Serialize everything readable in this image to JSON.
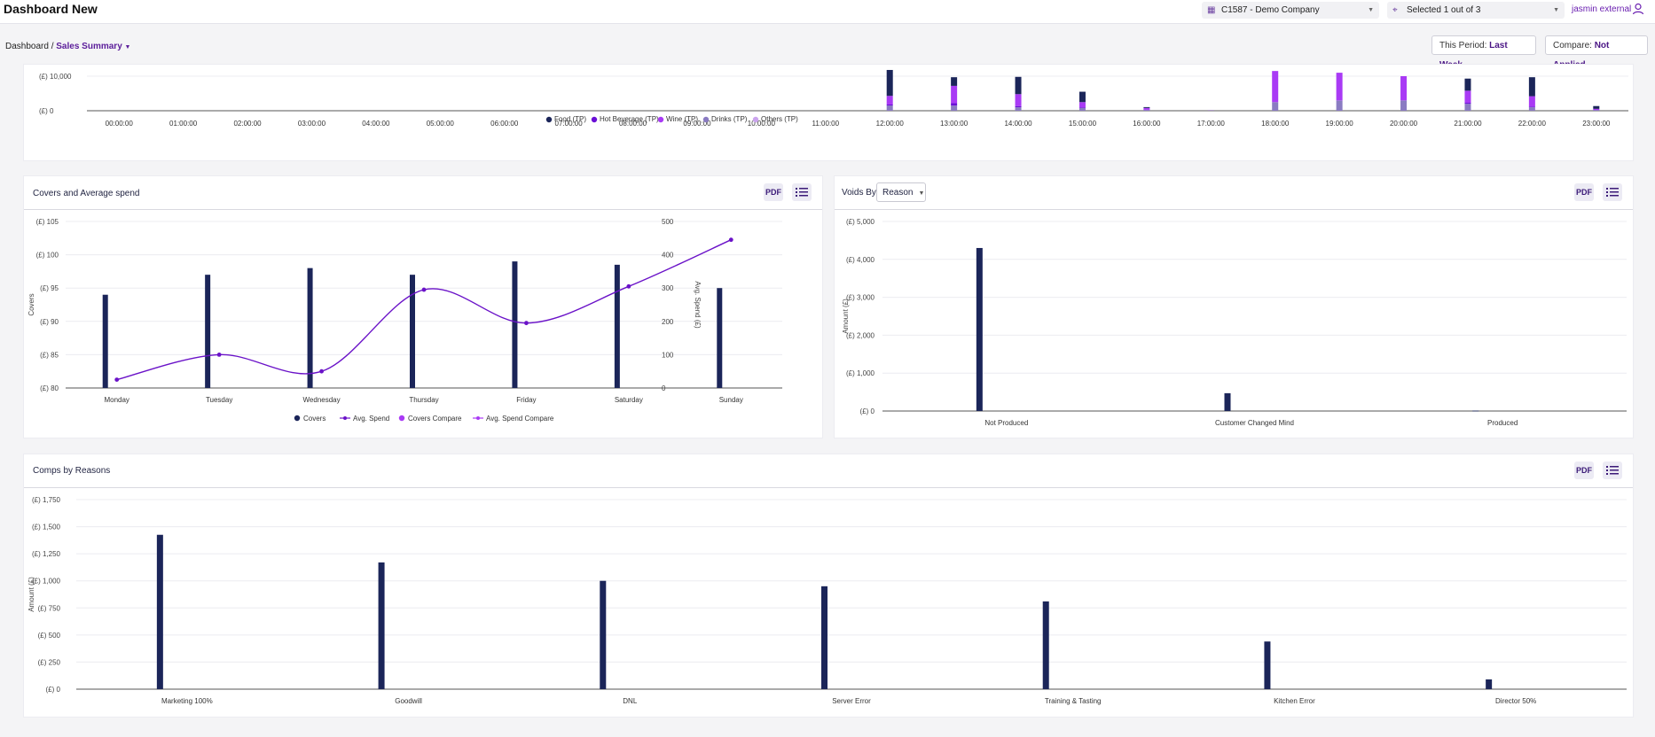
{
  "app": {
    "title": "Dashboard New"
  },
  "header": {
    "company": "C1587 - Demo Company",
    "sites": "Selected 1 out of 3",
    "user": "jasmin external"
  },
  "breadcrumb": {
    "root": "Dashboard",
    "sep": "/",
    "current": "Sales Summary"
  },
  "period": {
    "label": "This Period:",
    "value": "Last Week"
  },
  "compare": {
    "label": "Compare:",
    "value": "Not Applied"
  },
  "colors": {
    "navy": "#1b2559",
    "hot_beverage": "#6a0fd6",
    "wine": "#a93af5",
    "drinks": "#8a7bc2",
    "others": "#cba4ee",
    "spend_line": "#6a12c8",
    "accent": "#5b1d9a"
  },
  "buttons": {
    "pdf": "PDF"
  },
  "cards": {
    "covers": {
      "title": "Covers and Average spend"
    },
    "voids": {
      "title": "Voids By",
      "select": "Reason"
    },
    "comps": {
      "title": "Comps by Reasons"
    }
  },
  "chart_data": [
    {
      "id": "hourly",
      "type": "bar",
      "stacked": true,
      "categories": [
        "00:00:00",
        "01:00:00",
        "02:00:00",
        "03:00:00",
        "04:00:00",
        "05:00:00",
        "06:00:00",
        "07:00:00",
        "08:00:00",
        "09:00:00",
        "10:00:00",
        "11:00:00",
        "12:00:00",
        "13:00:00",
        "14:00:00",
        "15:00:00",
        "16:00:00",
        "17:00:00",
        "18:00:00",
        "19:00:00",
        "20:00:00",
        "21:00:00",
        "22:00:00",
        "23:00:00"
      ],
      "y_ticks": [
        "(£) 0",
        "(£) 10,000"
      ],
      "legend": [
        "Food (TP)",
        "Hot Beverage (TP)",
        "Wine (TP)",
        "Drinks (TP)",
        "Others (TP)"
      ],
      "series": [
        {
          "name": "Food (TP)",
          "color_key": "navy",
          "values": [
            0,
            0,
            0,
            0,
            0,
            0,
            0,
            0,
            0,
            0,
            0,
            0,
            7500,
            2500,
            5000,
            3000,
            250,
            0,
            0,
            0,
            0,
            3500,
            5500,
            800
          ]
        },
        {
          "name": "Hot Beverage (TP)",
          "color_key": "hot_beverage",
          "values": [
            0,
            0,
            0,
            0,
            0,
            0,
            0,
            0,
            0,
            0,
            0,
            0,
            300,
            700,
            300,
            200,
            100,
            50,
            0,
            0,
            0,
            300,
            200,
            50
          ]
        },
        {
          "name": "Wine (TP)",
          "color_key": "wine",
          "values": [
            0,
            0,
            0,
            0,
            0,
            0,
            0,
            0,
            0,
            0,
            0,
            0,
            2500,
            5000,
            3500,
            1500,
            500,
            0,
            9000,
            8000,
            7000,
            3500,
            3000,
            300
          ]
        },
        {
          "name": "Drinks (TP)",
          "color_key": "drinks",
          "values": [
            0,
            0,
            0,
            0,
            0,
            0,
            0,
            0,
            0,
            0,
            0,
            0,
            1500,
            1500,
            1000,
            800,
            200,
            0,
            2500,
            3000,
            3000,
            2000,
            1000,
            200
          ]
        },
        {
          "name": "Others (TP)",
          "color_key": "others",
          "values": [
            0,
            0,
            0,
            0,
            0,
            0,
            0,
            0,
            0,
            0,
            0,
            0,
            0,
            0,
            0,
            0,
            0,
            0,
            0,
            0,
            0,
            0,
            0,
            0
          ]
        }
      ]
    },
    {
      "id": "covers",
      "type": "bar",
      "categories": [
        "Monday",
        "Tuesday",
        "Wednesday",
        "Thursday",
        "Friday",
        "Saturday",
        "Sunday"
      ],
      "ylabel_left": "Covers",
      "ylabel_right": "Avg. Spend (£)",
      "y_left_ticks": [
        "(£) 80",
        "(£) 85",
        "(£) 90",
        "(£) 95",
        "(£) 100",
        "(£) 105"
      ],
      "y_right_ticks": [
        "0",
        "100",
        "200",
        "300",
        "400",
        "500"
      ],
      "ylim_left": [
        80,
        105
      ],
      "ylim_right": [
        0,
        500
      ],
      "covers": [
        94,
        97,
        98,
        97,
        99,
        98.5,
        95
      ],
      "avg_spend": [
        25,
        100,
        50,
        295,
        195,
        305,
        445
      ],
      "legend": [
        "Covers",
        "Avg. Spend",
        "Covers Compare",
        "Avg. Spend Compare"
      ]
    },
    {
      "id": "voids",
      "type": "bar",
      "categories": [
        "Not Produced",
        "Customer Changed Mind",
        "Produced"
      ],
      "values": [
        4300,
        470,
        10
      ],
      "ylabel": "Amount (£)",
      "y_ticks": [
        "(£) 0",
        "(£) 1,000",
        "(£) 2,000",
        "(£) 3,000",
        "(£) 4,000",
        "(£) 5,000"
      ],
      "ylim": [
        0,
        5000
      ]
    },
    {
      "id": "comps",
      "type": "bar",
      "categories": [
        "Marketing 100%",
        "Goodwill",
        "DNL",
        "Server Error",
        "Training & Tasting",
        "Kitchen Error",
        "Director 50%"
      ],
      "values": [
        1425,
        1170,
        1000,
        950,
        810,
        440,
        90
      ],
      "ylabel": "Amount (£)",
      "y_ticks": [
        "(£) 0",
        "(£) 250",
        "(£) 500",
        "(£) 750",
        "(£) 1,000",
        "(£) 1,250",
        "(£) 1,500",
        "(£) 1,750"
      ],
      "ylim": [
        0,
        1750
      ]
    }
  ]
}
